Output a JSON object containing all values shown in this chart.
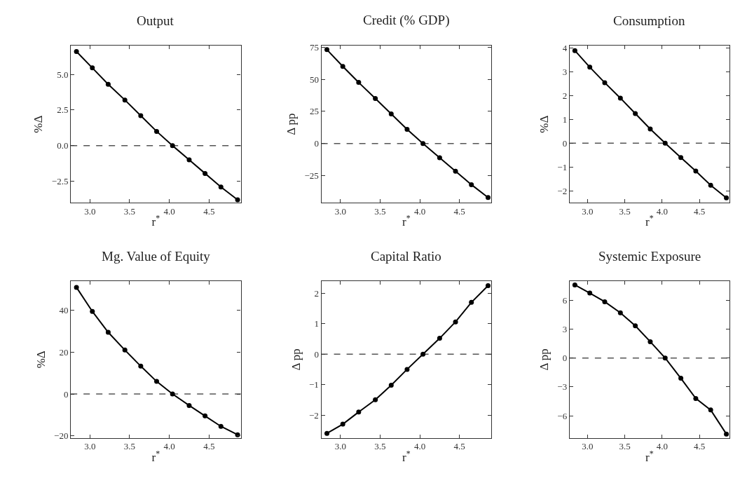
{
  "chart_data": [
    {
      "type": "line",
      "title": "Output",
      "xlabel": "r$^{*}$",
      "ylabel": "%Δ",
      "x": [
        2.83,
        3.03,
        3.23,
        3.44,
        3.64,
        3.84,
        4.04,
        4.25,
        4.45,
        4.65,
        4.86
      ],
      "series": [
        {
          "color": "#000000",
          "values": [
            6.6,
            5.45,
            4.3,
            3.2,
            2.1,
            1.0,
            0,
            -1.0,
            -1.95,
            -2.9,
            -3.8
          ]
        }
      ],
      "xlim": [
        2.76,
        4.9
      ],
      "ylim": [
        -4.0,
        7.0
      ],
      "xticks": [
        {
          "value": 3.0,
          "label": "3.0"
        },
        {
          "value": 3.5,
          "label": "3.5"
        },
        {
          "value": 4.0,
          "label": "4.0"
        },
        {
          "value": 4.5,
          "label": "4.5"
        }
      ],
      "yticks": [
        {
          "value": -2.5,
          "label": "−2.5"
        },
        {
          "value": 0,
          "label": "0.0"
        },
        {
          "value": 2.5,
          "label": "2.5"
        },
        {
          "value": 5.0,
          "label": "5.0"
        }
      ],
      "ref_lines": [
        {
          "axis": "y",
          "value": 0,
          "color": "#555555",
          "line_style": "dashed"
        }
      ],
      "marker": "circle",
      "line_style": "solid",
      "grid": false
    },
    {
      "type": "line",
      "title": "Credit (% GDP)",
      "xlabel": "r$^{*}$",
      "ylabel": "Δ pp",
      "x": [
        2.83,
        3.03,
        3.23,
        3.44,
        3.64,
        3.84,
        4.04,
        4.25,
        4.45,
        4.65,
        4.86
      ],
      "series": [
        {
          "color": "#000000",
          "values": [
            73,
            60,
            47.5,
            35,
            23,
            11,
            0,
            -11,
            -21.5,
            -32,
            -42
          ]
        }
      ],
      "xlim": [
        2.76,
        4.9
      ],
      "ylim": [
        -46,
        76
      ],
      "xticks": [
        {
          "value": 3.0,
          "label": "3.0"
        },
        {
          "value": 3.5,
          "label": "3.5"
        },
        {
          "value": 4.0,
          "label": "4.0"
        },
        {
          "value": 4.5,
          "label": "4.5"
        }
      ],
      "yticks": [
        {
          "value": -25,
          "label": "−25"
        },
        0,
        25,
        50,
        75
      ],
      "ref_lines": [
        {
          "axis": "y",
          "value": 0,
          "color": "#555555",
          "line_style": "dashed"
        }
      ],
      "marker": "circle",
      "line_style": "solid",
      "grid": false
    },
    {
      "type": "line",
      "title": "Consumption",
      "xlabel": "r$^{*}$",
      "ylabel": "%Δ",
      "x": [
        2.83,
        3.03,
        3.23,
        3.44,
        3.64,
        3.84,
        4.04,
        4.25,
        4.45,
        4.65,
        4.86
      ],
      "series": [
        {
          "color": "#000000",
          "values": [
            3.9,
            3.2,
            2.55,
            1.9,
            1.25,
            0.6,
            0,
            -0.6,
            -1.17,
            -1.77,
            -2.3
          ]
        }
      ],
      "xlim": [
        2.76,
        4.9
      ],
      "ylim": [
        -2.5,
        4.1
      ],
      "xticks": [
        {
          "value": 3.0,
          "label": "3.0"
        },
        {
          "value": 3.5,
          "label": "3.5"
        },
        {
          "value": 4.0,
          "label": "4.0"
        },
        {
          "value": 4.5,
          "label": "4.5"
        }
      ],
      "yticks": [
        {
          "value": -2,
          "label": "−2"
        },
        {
          "value": -1,
          "label": "−1"
        },
        0,
        1,
        2,
        3,
        4
      ],
      "ref_lines": [
        {
          "axis": "y",
          "value": 0,
          "color": "#555555",
          "line_style": "dashed"
        }
      ],
      "marker": "circle",
      "line_style": "solid",
      "grid": false
    },
    {
      "type": "line",
      "title": "Mg. Value of Equity",
      "xlabel": "r$^{*}$",
      "ylabel": "%Δ",
      "x": [
        2.83,
        3.03,
        3.23,
        3.44,
        3.64,
        3.84,
        4.04,
        4.25,
        4.45,
        4.65,
        4.86
      ],
      "series": [
        {
          "color": "#000000",
          "values": [
            51,
            39.5,
            29.5,
            21,
            13.3,
            6,
            0,
            -5.5,
            -10.5,
            -15.5,
            -19.5
          ]
        }
      ],
      "xlim": [
        2.76,
        4.9
      ],
      "ylim": [
        -21,
        54
      ],
      "xticks": [
        {
          "value": 3.0,
          "label": "3.0"
        },
        {
          "value": 3.5,
          "label": "3.5"
        },
        {
          "value": 4.0,
          "label": "4.0"
        },
        {
          "value": 4.5,
          "label": "4.5"
        }
      ],
      "yticks": [
        {
          "value": -20,
          "label": "−20"
        },
        0,
        20,
        40
      ],
      "ref_lines": [
        {
          "axis": "y",
          "value": 0,
          "color": "#555555",
          "line_style": "dashed"
        }
      ],
      "marker": "circle",
      "line_style": "solid",
      "grid": false
    },
    {
      "type": "line",
      "title": "Capital Ratio",
      "xlabel": "r$^{*}$",
      "ylabel": "Δ pp",
      "x": [
        2.83,
        3.03,
        3.23,
        3.44,
        3.64,
        3.84,
        4.04,
        4.25,
        4.45,
        4.65,
        4.86
      ],
      "series": [
        {
          "color": "#000000",
          "values": [
            -2.6,
            -2.3,
            -1.9,
            -1.5,
            -1.02,
            -0.5,
            0,
            0.52,
            1.06,
            1.7,
            2.25
          ]
        }
      ],
      "xlim": [
        2.76,
        4.9
      ],
      "ylim": [
        -2.75,
        2.4
      ],
      "xticks": [
        {
          "value": 3.0,
          "label": "3.0"
        },
        {
          "value": 3.5,
          "label": "3.5"
        },
        {
          "value": 4.0,
          "label": "4.0"
        },
        {
          "value": 4.5,
          "label": "4.5"
        }
      ],
      "yticks": [
        {
          "value": -2,
          "label": "−2"
        },
        {
          "value": -1,
          "label": "−1"
        },
        0,
        1,
        2
      ],
      "ref_lines": [
        {
          "axis": "y",
          "value": 0,
          "color": "#555555",
          "line_style": "dashed"
        }
      ],
      "marker": "circle",
      "line_style": "solid",
      "grid": false
    },
    {
      "type": "line",
      "title": "Systemic Exposure",
      "xlabel": "r$^{*}$",
      "ylabel": "Δ pp",
      "x": [
        2.83,
        3.03,
        3.23,
        3.44,
        3.64,
        3.84,
        4.04,
        4.25,
        4.45,
        4.65,
        4.86
      ],
      "series": [
        {
          "color": "#000000",
          "values": [
            7.6,
            6.75,
            5.85,
            4.7,
            3.35,
            1.7,
            0,
            -2.1,
            -4.2,
            -5.4,
            -7.9
          ]
        }
      ],
      "xlim": [
        2.76,
        4.9
      ],
      "ylim": [
        -8.3,
        8.0
      ],
      "xticks": [
        {
          "value": 3.0,
          "label": "3.0"
        },
        {
          "value": 3.5,
          "label": "3.5"
        },
        {
          "value": 4.0,
          "label": "4.0"
        },
        {
          "value": 4.5,
          "label": "4.5"
        }
      ],
      "yticks": [
        {
          "value": -6,
          "label": "−6"
        },
        {
          "value": -3,
          "label": "−3"
        },
        0,
        3,
        6
      ],
      "ref_lines": [
        {
          "axis": "y",
          "value": 0,
          "color": "#555555",
          "line_style": "dashed"
        }
      ],
      "marker": "circle",
      "line_style": "solid",
      "grid": false
    }
  ]
}
